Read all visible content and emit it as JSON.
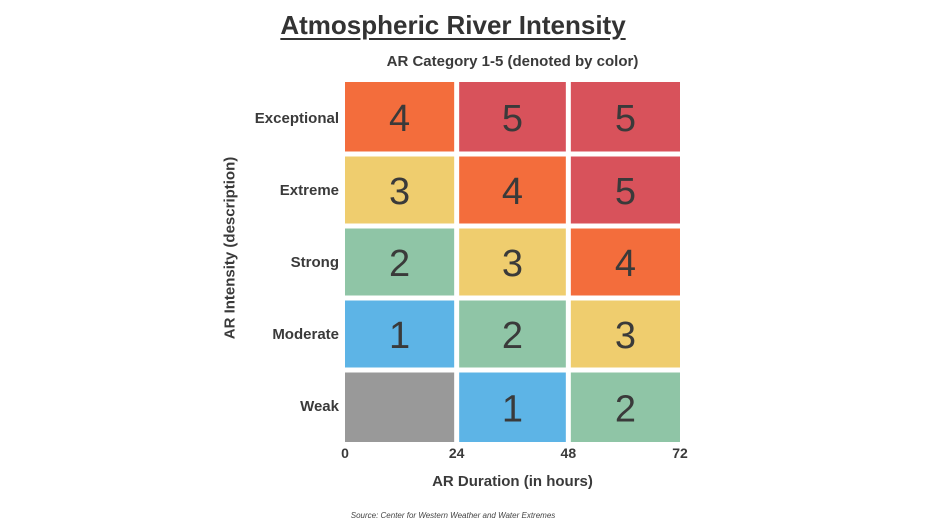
{
  "chart_data": {
    "type": "heatmap",
    "title": "Atmospheric River Intensity",
    "subtitle": "AR Category 1-5 (denoted by color)",
    "xlabel": "AR Duration (in hours)",
    "ylabel": "AR Intensity (description)",
    "x_ticks": [
      "0",
      "24",
      "48",
      "72"
    ],
    "rows": [
      "Exceptional",
      "Extreme",
      "Strong",
      "Moderate",
      "Weak"
    ],
    "values": [
      [
        4,
        5,
        5
      ],
      [
        3,
        4,
        5
      ],
      [
        2,
        3,
        4
      ],
      [
        1,
        2,
        3
      ],
      [
        null,
        1,
        2
      ]
    ],
    "category_colors": {
      "0": "#999999",
      "1": "#5db4e6",
      "2": "#8fc5a6",
      "3": "#efcd6e",
      "4": "#f36d3c",
      "5": "#d8525b"
    }
  },
  "source": "Source: Center for Western Weather and Water Extremes"
}
